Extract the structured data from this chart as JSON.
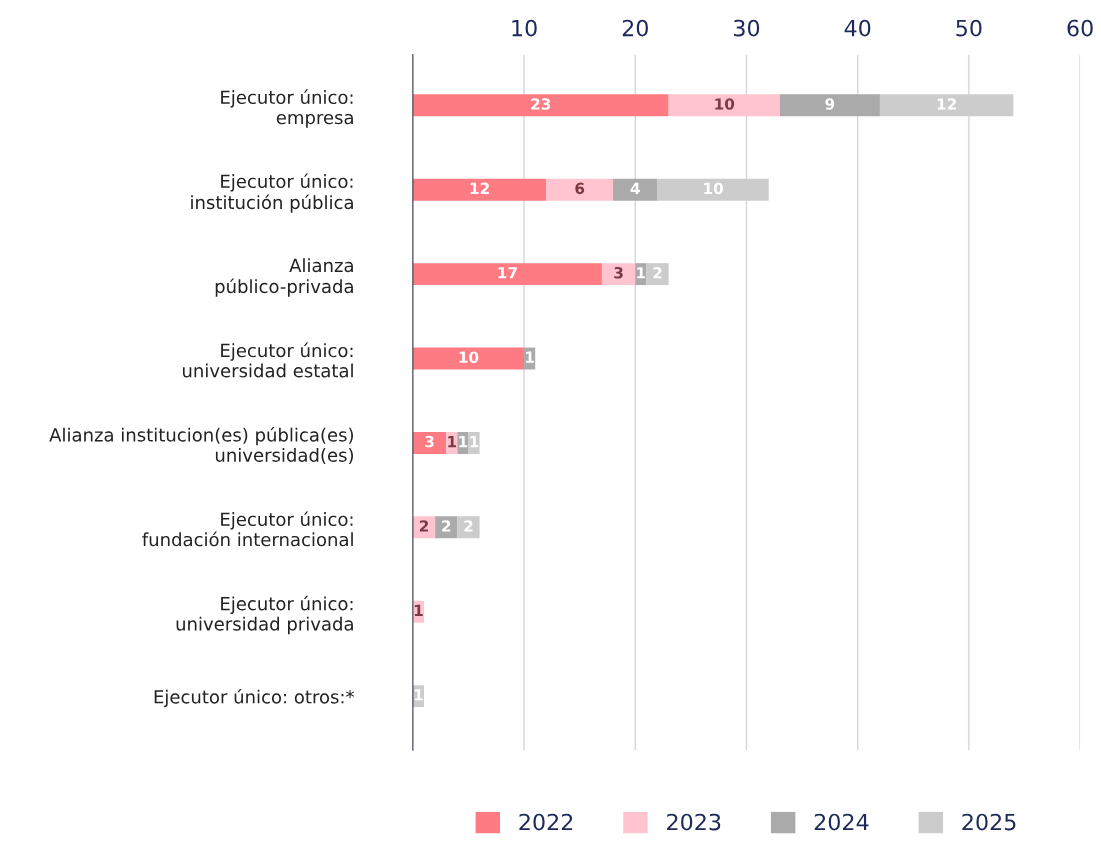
{
  "chart_data": {
    "type": "bar",
    "orientation": "horizontal",
    "stacked": true,
    "data_labels": true,
    "grid": "x",
    "legend": "bottom",
    "categories": [
      "Ejecutor único:\nempresa",
      "Ejecutor único:\ninstitución pública",
      "Alianza\npúblico-privada",
      "Ejecutor único:\nuniversidad estatal",
      "Alianza institucion(es) pública(es)\nuniversidad(es)",
      "Ejecutor único:\nfundación internacional",
      "Ejecutor único:\nuniversidad privada",
      "Ejecutor único: otros:*"
    ],
    "xlim": [
      0,
      60
    ],
    "xticks": [
      10,
      20,
      30,
      40,
      50,
      60
    ],
    "series": [
      {
        "name": "2022",
        "color": "#ff7b83",
        "values": [
          23,
          12,
          17,
          10,
          3,
          null,
          null,
          null
        ]
      },
      {
        "name": "2023",
        "color": "#ffc4cf",
        "values": [
          10,
          6,
          3,
          null,
          1,
          2,
          1,
          null
        ]
      },
      {
        "name": "2024",
        "color": "#aaaaaa",
        "values": [
          9,
          4,
          1,
          1,
          1,
          2,
          null,
          null
        ]
      },
      {
        "name": "2025",
        "color": "#cccccc",
        "values": [
          12,
          10,
          2,
          null,
          1,
          2,
          null,
          1
        ]
      }
    ]
  }
}
